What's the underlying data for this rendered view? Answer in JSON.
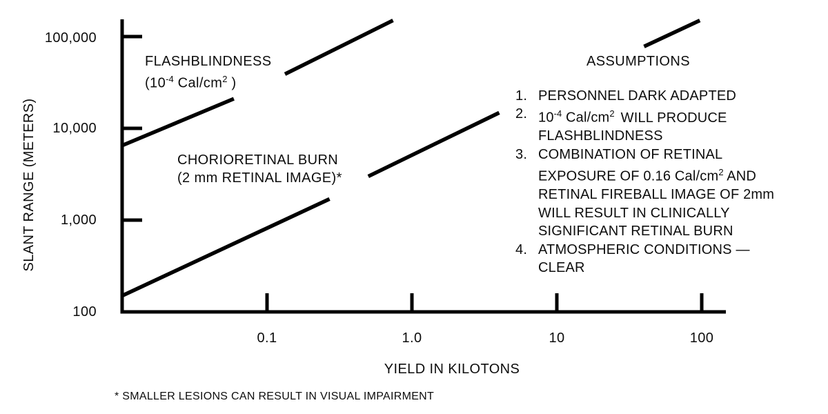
{
  "figure": {
    "background": "#ffffff",
    "ink": "#000000"
  },
  "chart_data": {
    "type": "line",
    "title": "",
    "grid": false,
    "legend": "inline-labels",
    "x_axis": {
      "label": "YIELD IN KILOTONS",
      "scale": "log",
      "range": [
        0.01,
        135
      ],
      "ticks": [
        0.1,
        1.0,
        10,
        100
      ],
      "tick_labels": [
        "0.1",
        "1.0",
        "10",
        "100"
      ]
    },
    "y_axis": {
      "label": "SLANT RANGE (METERS)",
      "scale": "log",
      "range": [
        100,
        160000
      ],
      "ticks": [
        100,
        1000,
        10000,
        100000
      ],
      "tick_labels": [
        "100",
        "1,000",
        "10,000",
        "100,000"
      ]
    },
    "series": [
      {
        "name": "FLASHBLINDNESS (10^-4 Cal/cm^2)",
        "style": "solid",
        "segments": [
          [
            [
              0.01,
              6500
            ],
            [
              0.059,
              21000
            ]
          ],
          [
            [
              0.133,
              39000
            ],
            [
              0.74,
              150000
            ]
          ]
        ]
      },
      {
        "name": "CHORIORETINAL BURN (2 mm RETINAL IMAGE)",
        "style": "solid",
        "segments": [
          [
            [
              0.01,
              150
            ],
            [
              0.27,
              1700
            ]
          ],
          [
            [
              0.5,
              3000
            ],
            [
              4.0,
              14800
            ]
          ],
          [
            [
              40,
              78000
            ],
            [
              97,
              150000
            ]
          ]
        ]
      }
    ]
  },
  "labels": {
    "y_axis_title": "SLANT RANGE (METERS)",
    "x_axis_title": "YIELD IN KILOTONS",
    "flash": {
      "line1": "FLASHBLINDNESS",
      "p1": "(10",
      "sup1": "-4",
      "p2": " Cal/cm",
      "sup2": "2",
      "p3": " )"
    },
    "chorio": {
      "line1": "CHORIORETINAL BURN",
      "line2": "(2 mm RETINAL IMAGE)*"
    },
    "footnote": "* SMALLER LESIONS CAN RESULT IN VISUAL IMPAIRMENT"
  },
  "assumptions": {
    "title": "ASSUMPTIONS",
    "items": {
      "i1": {
        "num": "1.",
        "line1": "PERSONNEL DARK ADAPTED"
      },
      "i2": {
        "num": "2.",
        "base": "10",
        "sup": "-4",
        "mid": " Cal/cm",
        "sup2": "2",
        "tail": "WILL PRODUCE",
        "line2": "FLASHBLINDNESS"
      },
      "i3": {
        "num": "3.",
        "line1": "COMBINATION OF RETINAL",
        "l2a": "EXPOSURE OF 0.16 Cal/cm",
        "l2sup": "2",
        "l2b": " AND",
        "line3": "RETINAL FIREBALL IMAGE OF 2mm",
        "line4": "WILL RESULT IN CLINICALLY",
        "line5": "SIGNIFICANT RETINAL BURN"
      },
      "i4": {
        "num": "4.",
        "line1": "ATMOSPHERIC CONDITIONS —",
        "line2": "CLEAR"
      }
    }
  }
}
